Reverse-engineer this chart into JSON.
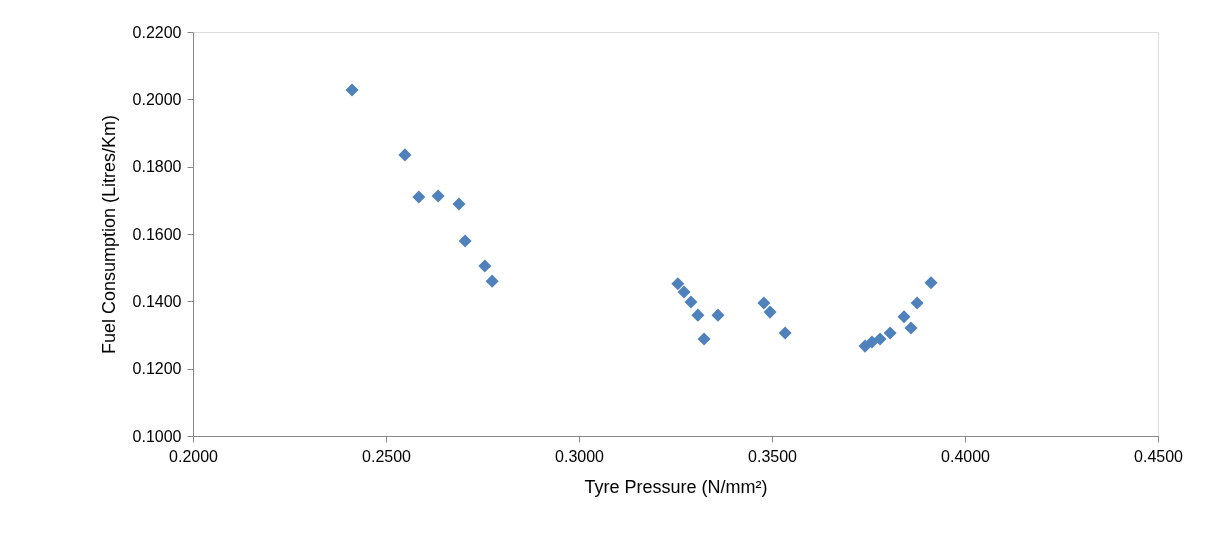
{
  "chart_data": {
    "type": "scatter",
    "xlabel": "Tyre Pressure (N/mm²)",
    "ylabel": "Fuel Consumption (Litres/Km)",
    "x": [
      0.2412,
      0.2549,
      0.2585,
      0.2635,
      0.2689,
      0.2705,
      0.2756,
      0.2775,
      0.3256,
      0.3272,
      0.329,
      0.3308,
      0.336,
      0.3324,
      0.3479,
      0.3495,
      0.3534,
      0.3741,
      0.3759,
      0.378,
      0.3806,
      0.3842,
      0.386,
      0.3876,
      0.3912
    ],
    "series": [
      {
        "color": "#4f81bd",
        "values": [
          0.2028,
          0.1835,
          0.171,
          0.1713,
          0.1689,
          0.1579,
          0.1505,
          0.146,
          0.1452,
          0.1428,
          0.1398,
          0.1359,
          0.1359,
          0.1288,
          0.1395,
          0.1368,
          0.1306,
          0.1267,
          0.1279,
          0.1288,
          0.1306,
          0.1354,
          0.1321,
          0.1395,
          0.1455
        ]
      }
    ],
    "marker": "diamond",
    "grid": false,
    "xlim": [
      0.2,
      0.45
    ],
    "xticks": [
      {
        "value": 0.2,
        "label": "0.2000"
      },
      {
        "value": 0.25,
        "label": "0.2500"
      },
      {
        "value": 0.3,
        "label": "0.3000"
      },
      {
        "value": 0.35,
        "label": "0.3500"
      },
      {
        "value": 0.4,
        "label": "0.4000"
      },
      {
        "value": 0.45,
        "label": "0.4500"
      }
    ],
    "ylim": [
      0.1,
      0.22
    ],
    "yticks": [
      {
        "value": 0.1,
        "label": "0.1000"
      },
      {
        "value": 0.12,
        "label": "0.1200"
      },
      {
        "value": 0.14,
        "label": "0.1400"
      },
      {
        "value": 0.16,
        "label": "0.1600"
      },
      {
        "value": 0.18,
        "label": "0.1800"
      },
      {
        "value": 0.2,
        "label": "0.2000"
      },
      {
        "value": 0.22,
        "label": "0.2200"
      }
    ]
  }
}
